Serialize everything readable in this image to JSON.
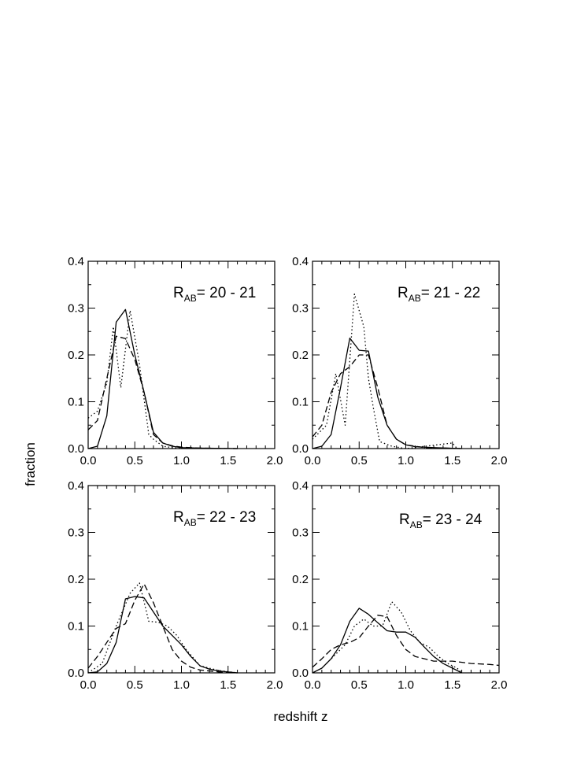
{
  "figure": {
    "xlabel": "redshift z",
    "ylabel": "fraction"
  },
  "chart_data": [
    {
      "type": "line",
      "label_main": "R",
      "label_sub": "AB",
      "label_rest": "= 20 - 21",
      "xlim": [
        0,
        2.0
      ],
      "ylim": [
        0,
        0.4
      ],
      "x_ticks": [
        "0.0",
        "0.5",
        "1.0",
        "1.5",
        "2.0"
      ],
      "y_ticks": [
        "0.0",
        "0.1",
        "0.2",
        "0.3",
        "0.4"
      ],
      "series": [
        {
          "style": "solid",
          "points": [
            [
              0,
              0
            ],
            [
              0.1,
              0.005
            ],
            [
              0.2,
              0.07
            ],
            [
              0.3,
              0.27
            ],
            [
              0.4,
              0.297
            ],
            [
              0.5,
              0.2
            ],
            [
              0.6,
              0.12
            ],
            [
              0.7,
              0.035
            ],
            [
              0.8,
              0.012
            ],
            [
              0.9,
              0.005
            ],
            [
              1.0,
              0.002
            ],
            [
              1.2,
              0.001
            ],
            [
              1.6,
              0
            ]
          ]
        },
        {
          "style": "dashed",
          "points": [
            [
              0,
              0.04
            ],
            [
              0.1,
              0.06
            ],
            [
              0.2,
              0.15
            ],
            [
              0.3,
              0.24
            ],
            [
              0.4,
              0.235
            ],
            [
              0.5,
              0.19
            ],
            [
              0.6,
              0.12
            ],
            [
              0.7,
              0.03
            ],
            [
              0.8,
              0.012
            ],
            [
              0.9,
              0.006
            ],
            [
              1.0,
              0.003
            ],
            [
              1.2,
              0.001
            ],
            [
              1.6,
              0
            ]
          ]
        },
        {
          "style": "dotted",
          "points": [
            [
              0,
              0.065
            ],
            [
              0.1,
              0.08
            ],
            [
              0.2,
              0.14
            ],
            [
              0.27,
              0.26
            ],
            [
              0.35,
              0.13
            ],
            [
              0.45,
              0.295
            ],
            [
              0.55,
              0.18
            ],
            [
              0.65,
              0.03
            ],
            [
              0.7,
              0.02
            ],
            [
              0.8,
              0.005
            ],
            [
              0.9,
              0.002
            ],
            [
              1.0,
              0
            ]
          ]
        }
      ]
    },
    {
      "type": "line",
      "label_main": "R",
      "label_sub": "AB",
      "label_rest": "= 21 - 22",
      "xlim": [
        0,
        2.0
      ],
      "ylim": [
        0,
        0.4
      ],
      "x_ticks": [
        "0.0",
        "0.5",
        "1.0",
        "1.5",
        "2.0"
      ],
      "y_ticks": [
        "0.0",
        "0.1",
        "0.2",
        "0.3",
        "0.4"
      ],
      "series": [
        {
          "style": "solid",
          "points": [
            [
              0,
              0
            ],
            [
              0.1,
              0.005
            ],
            [
              0.2,
              0.03
            ],
            [
              0.3,
              0.13
            ],
            [
              0.4,
              0.236
            ],
            [
              0.5,
              0.21
            ],
            [
              0.6,
              0.208
            ],
            [
              0.7,
              0.11
            ],
            [
              0.8,
              0.05
            ],
            [
              0.9,
              0.02
            ],
            [
              1.0,
              0.008
            ],
            [
              1.1,
              0.004
            ],
            [
              1.3,
              0.002
            ],
            [
              1.6,
              0
            ]
          ]
        },
        {
          "style": "dashed",
          "points": [
            [
              0,
              0.025
            ],
            [
              0.1,
              0.05
            ],
            [
              0.2,
              0.12
            ],
            [
              0.3,
              0.16
            ],
            [
              0.4,
              0.175
            ],
            [
              0.5,
              0.2
            ],
            [
              0.6,
              0.2
            ],
            [
              0.7,
              0.13
            ],
            [
              0.8,
              0.05
            ],
            [
              0.9,
              0.02
            ],
            [
              1.0,
              0.008
            ],
            [
              1.2,
              0.002
            ],
            [
              1.6,
              0
            ]
          ]
        },
        {
          "style": "dotted",
          "points": [
            [
              0,
              0.02
            ],
            [
              0.15,
              0.05
            ],
            [
              0.25,
              0.16
            ],
            [
              0.35,
              0.05
            ],
            [
              0.45,
              0.33
            ],
            [
              0.55,
              0.26
            ],
            [
              0.6,
              0.15
            ],
            [
              0.65,
              0.09
            ],
            [
              0.72,
              0.015
            ],
            [
              0.85,
              0.005
            ],
            [
              1.0,
              0
            ],
            [
              1.5,
              0.012
            ],
            [
              1.55,
              0
            ]
          ]
        }
      ]
    },
    {
      "type": "line",
      "label_main": "R",
      "label_sub": "AB",
      "label_rest": "= 22 - 23",
      "xlim": [
        0,
        2.0
      ],
      "ylim": [
        0,
        0.4
      ],
      "x_ticks": [
        "0.0",
        "0.5",
        "1.0",
        "1.5",
        "2.0"
      ],
      "y_ticks": [
        "0.0",
        "0.1",
        "0.2",
        "0.3",
        "0.4"
      ],
      "series": [
        {
          "style": "solid",
          "points": [
            [
              0,
              0
            ],
            [
              0.1,
              0.002
            ],
            [
              0.2,
              0.02
            ],
            [
              0.3,
              0.065
            ],
            [
              0.4,
              0.158
            ],
            [
              0.5,
              0.163
            ],
            [
              0.6,
              0.16
            ],
            [
              0.7,
              0.13
            ],
            [
              0.8,
              0.1
            ],
            [
              0.9,
              0.08
            ],
            [
              1.0,
              0.06
            ],
            [
              1.1,
              0.035
            ],
            [
              1.2,
              0.015
            ],
            [
              1.3,
              0.008
            ],
            [
              1.4,
              0.004
            ],
            [
              1.6,
              0
            ]
          ]
        },
        {
          "style": "dashed",
          "points": [
            [
              0,
              0.01
            ],
            [
              0.1,
              0.035
            ],
            [
              0.2,
              0.065
            ],
            [
              0.3,
              0.095
            ],
            [
              0.4,
              0.105
            ],
            [
              0.5,
              0.155
            ],
            [
              0.6,
              0.19
            ],
            [
              0.7,
              0.15
            ],
            [
              0.8,
              0.1
            ],
            [
              0.9,
              0.05
            ],
            [
              1.0,
              0.025
            ],
            [
              1.1,
              0.012
            ],
            [
              1.2,
              0.006
            ],
            [
              1.4,
              0.002
            ],
            [
              1.6,
              0
            ]
          ]
        },
        {
          "style": "dotted",
          "points": [
            [
              0,
              0
            ],
            [
              0.15,
              0.02
            ],
            [
              0.3,
              0.1
            ],
            [
              0.45,
              0.17
            ],
            [
              0.55,
              0.192
            ],
            [
              0.65,
              0.11
            ],
            [
              0.75,
              0.108
            ],
            [
              0.85,
              0.1
            ],
            [
              0.95,
              0.08
            ],
            [
              1.05,
              0.05
            ],
            [
              1.2,
              0.015
            ],
            [
              1.4,
              0.005
            ],
            [
              1.6,
              0
            ]
          ]
        }
      ]
    },
    {
      "type": "line",
      "label_main": "R",
      "label_sub": "AB",
      "label_rest": "= 23 - 24",
      "xlim": [
        0,
        2.0
      ],
      "ylim": [
        0,
        0.4
      ],
      "x_ticks": [
        "0.0",
        "0.5",
        "1.0",
        "1.5",
        "2.0"
      ],
      "y_ticks": [
        "0.0",
        "0.1",
        "0.2",
        "0.3",
        "0.4"
      ],
      "series": [
        {
          "style": "solid",
          "points": [
            [
              0,
              0
            ],
            [
              0.1,
              0.01
            ],
            [
              0.2,
              0.03
            ],
            [
              0.3,
              0.06
            ],
            [
              0.4,
              0.11
            ],
            [
              0.5,
              0.138
            ],
            [
              0.6,
              0.125
            ],
            [
              0.7,
              0.107
            ],
            [
              0.8,
              0.09
            ],
            [
              0.9,
              0.087
            ],
            [
              1.0,
              0.087
            ],
            [
              1.1,
              0.076
            ],
            [
              1.2,
              0.055
            ],
            [
              1.3,
              0.035
            ],
            [
              1.4,
              0.02
            ],
            [
              1.5,
              0.01
            ],
            [
              1.6,
              0
            ]
          ]
        },
        {
          "style": "dashed",
          "points": [
            [
              0,
              0.012
            ],
            [
              0.1,
              0.03
            ],
            [
              0.2,
              0.05
            ],
            [
              0.3,
              0.06
            ],
            [
              0.4,
              0.065
            ],
            [
              0.5,
              0.075
            ],
            [
              0.6,
              0.1
            ],
            [
              0.7,
              0.123
            ],
            [
              0.8,
              0.12
            ],
            [
              0.9,
              0.08
            ],
            [
              1.0,
              0.05
            ],
            [
              1.1,
              0.035
            ],
            [
              1.2,
              0.03
            ],
            [
              1.3,
              0.025
            ],
            [
              1.4,
              0.025
            ],
            [
              1.5,
              0.025
            ],
            [
              1.7,
              0.02
            ],
            [
              1.9,
              0.018
            ],
            [
              2.0,
              0.016
            ]
          ]
        },
        {
          "style": "dotted",
          "points": [
            [
              0.15,
              0.02
            ],
            [
              0.25,
              0.04
            ],
            [
              0.35,
              0.06
            ],
            [
              0.45,
              0.1
            ],
            [
              0.55,
              0.115
            ],
            [
              0.65,
              0.1
            ],
            [
              0.75,
              0.1
            ],
            [
              0.85,
              0.152
            ],
            [
              0.95,
              0.13
            ],
            [
              1.05,
              0.09
            ],
            [
              1.15,
              0.065
            ],
            [
              1.25,
              0.055
            ],
            [
              1.35,
              0.035
            ],
            [
              1.45,
              0.02
            ],
            [
              1.55,
              0.01
            ],
            [
              1.6,
              0
            ]
          ]
        }
      ]
    }
  ]
}
